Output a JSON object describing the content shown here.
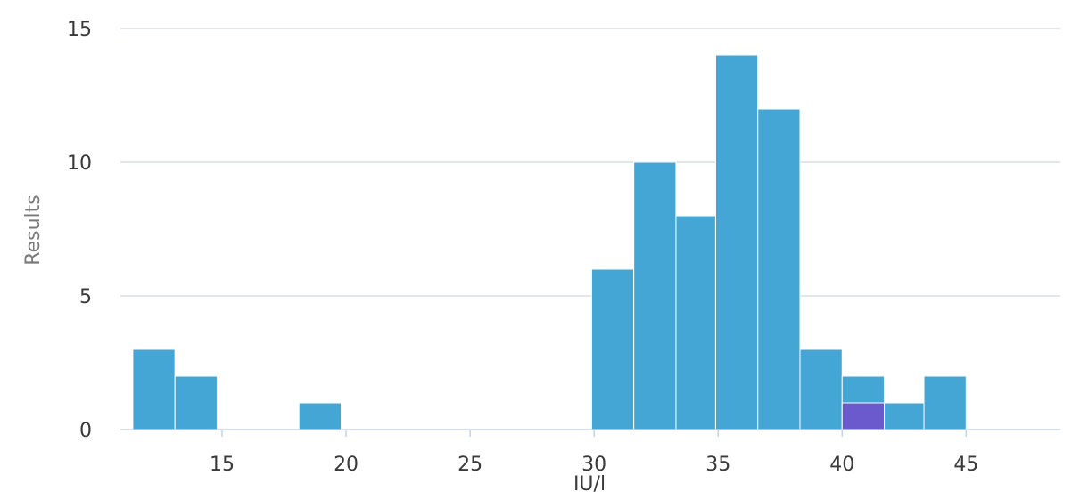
{
  "chart_data": {
    "type": "bar",
    "subtype": "histogram",
    "xlabel": "IU/l",
    "ylabel": "Results",
    "xlim": [
      10.9,
      48.8
    ],
    "ylim": [
      0,
      15
    ],
    "xticks": [
      15,
      20,
      25,
      30,
      35,
      40,
      45
    ],
    "yticks": [
      0,
      5,
      10,
      15
    ],
    "grid": true,
    "bin_width": 1.68,
    "colors": {
      "bar": "#44a6d5",
      "highlight": "#6a5acd"
    },
    "bins": [
      {
        "x0": 11.4,
        "x1": 13.1,
        "count": 3
      },
      {
        "x0": 13.1,
        "x1": 14.8,
        "count": 2
      },
      {
        "x0": 14.8,
        "x1": 16.5,
        "count": 0
      },
      {
        "x0": 16.5,
        "x1": 18.1,
        "count": 0
      },
      {
        "x0": 18.1,
        "x1": 19.8,
        "count": 1
      },
      {
        "x0": 19.8,
        "x1": 21.5,
        "count": 0
      },
      {
        "x0": 21.5,
        "x1": 23.2,
        "count": 0
      },
      {
        "x0": 23.2,
        "x1": 24.9,
        "count": 0
      },
      {
        "x0": 24.9,
        "x1": 26.5,
        "count": 0
      },
      {
        "x0": 26.5,
        "x1": 28.2,
        "count": 0
      },
      {
        "x0": 28.2,
        "x1": 29.9,
        "count": 0
      },
      {
        "x0": 29.9,
        "x1": 31.6,
        "count": 6
      },
      {
        "x0": 31.6,
        "x1": 33.3,
        "count": 10
      },
      {
        "x0": 33.3,
        "x1": 34.9,
        "count": 8
      },
      {
        "x0": 34.9,
        "x1": 36.6,
        "count": 14
      },
      {
        "x0": 36.6,
        "x1": 38.3,
        "count": 12
      },
      {
        "x0": 38.3,
        "x1": 40.0,
        "count": 3
      },
      {
        "x0": 40.0,
        "x1": 41.7,
        "count": 2,
        "highlight": 1
      },
      {
        "x0": 41.7,
        "x1": 43.3,
        "count": 1
      },
      {
        "x0": 43.3,
        "x1": 45.0,
        "count": 2
      }
    ]
  }
}
